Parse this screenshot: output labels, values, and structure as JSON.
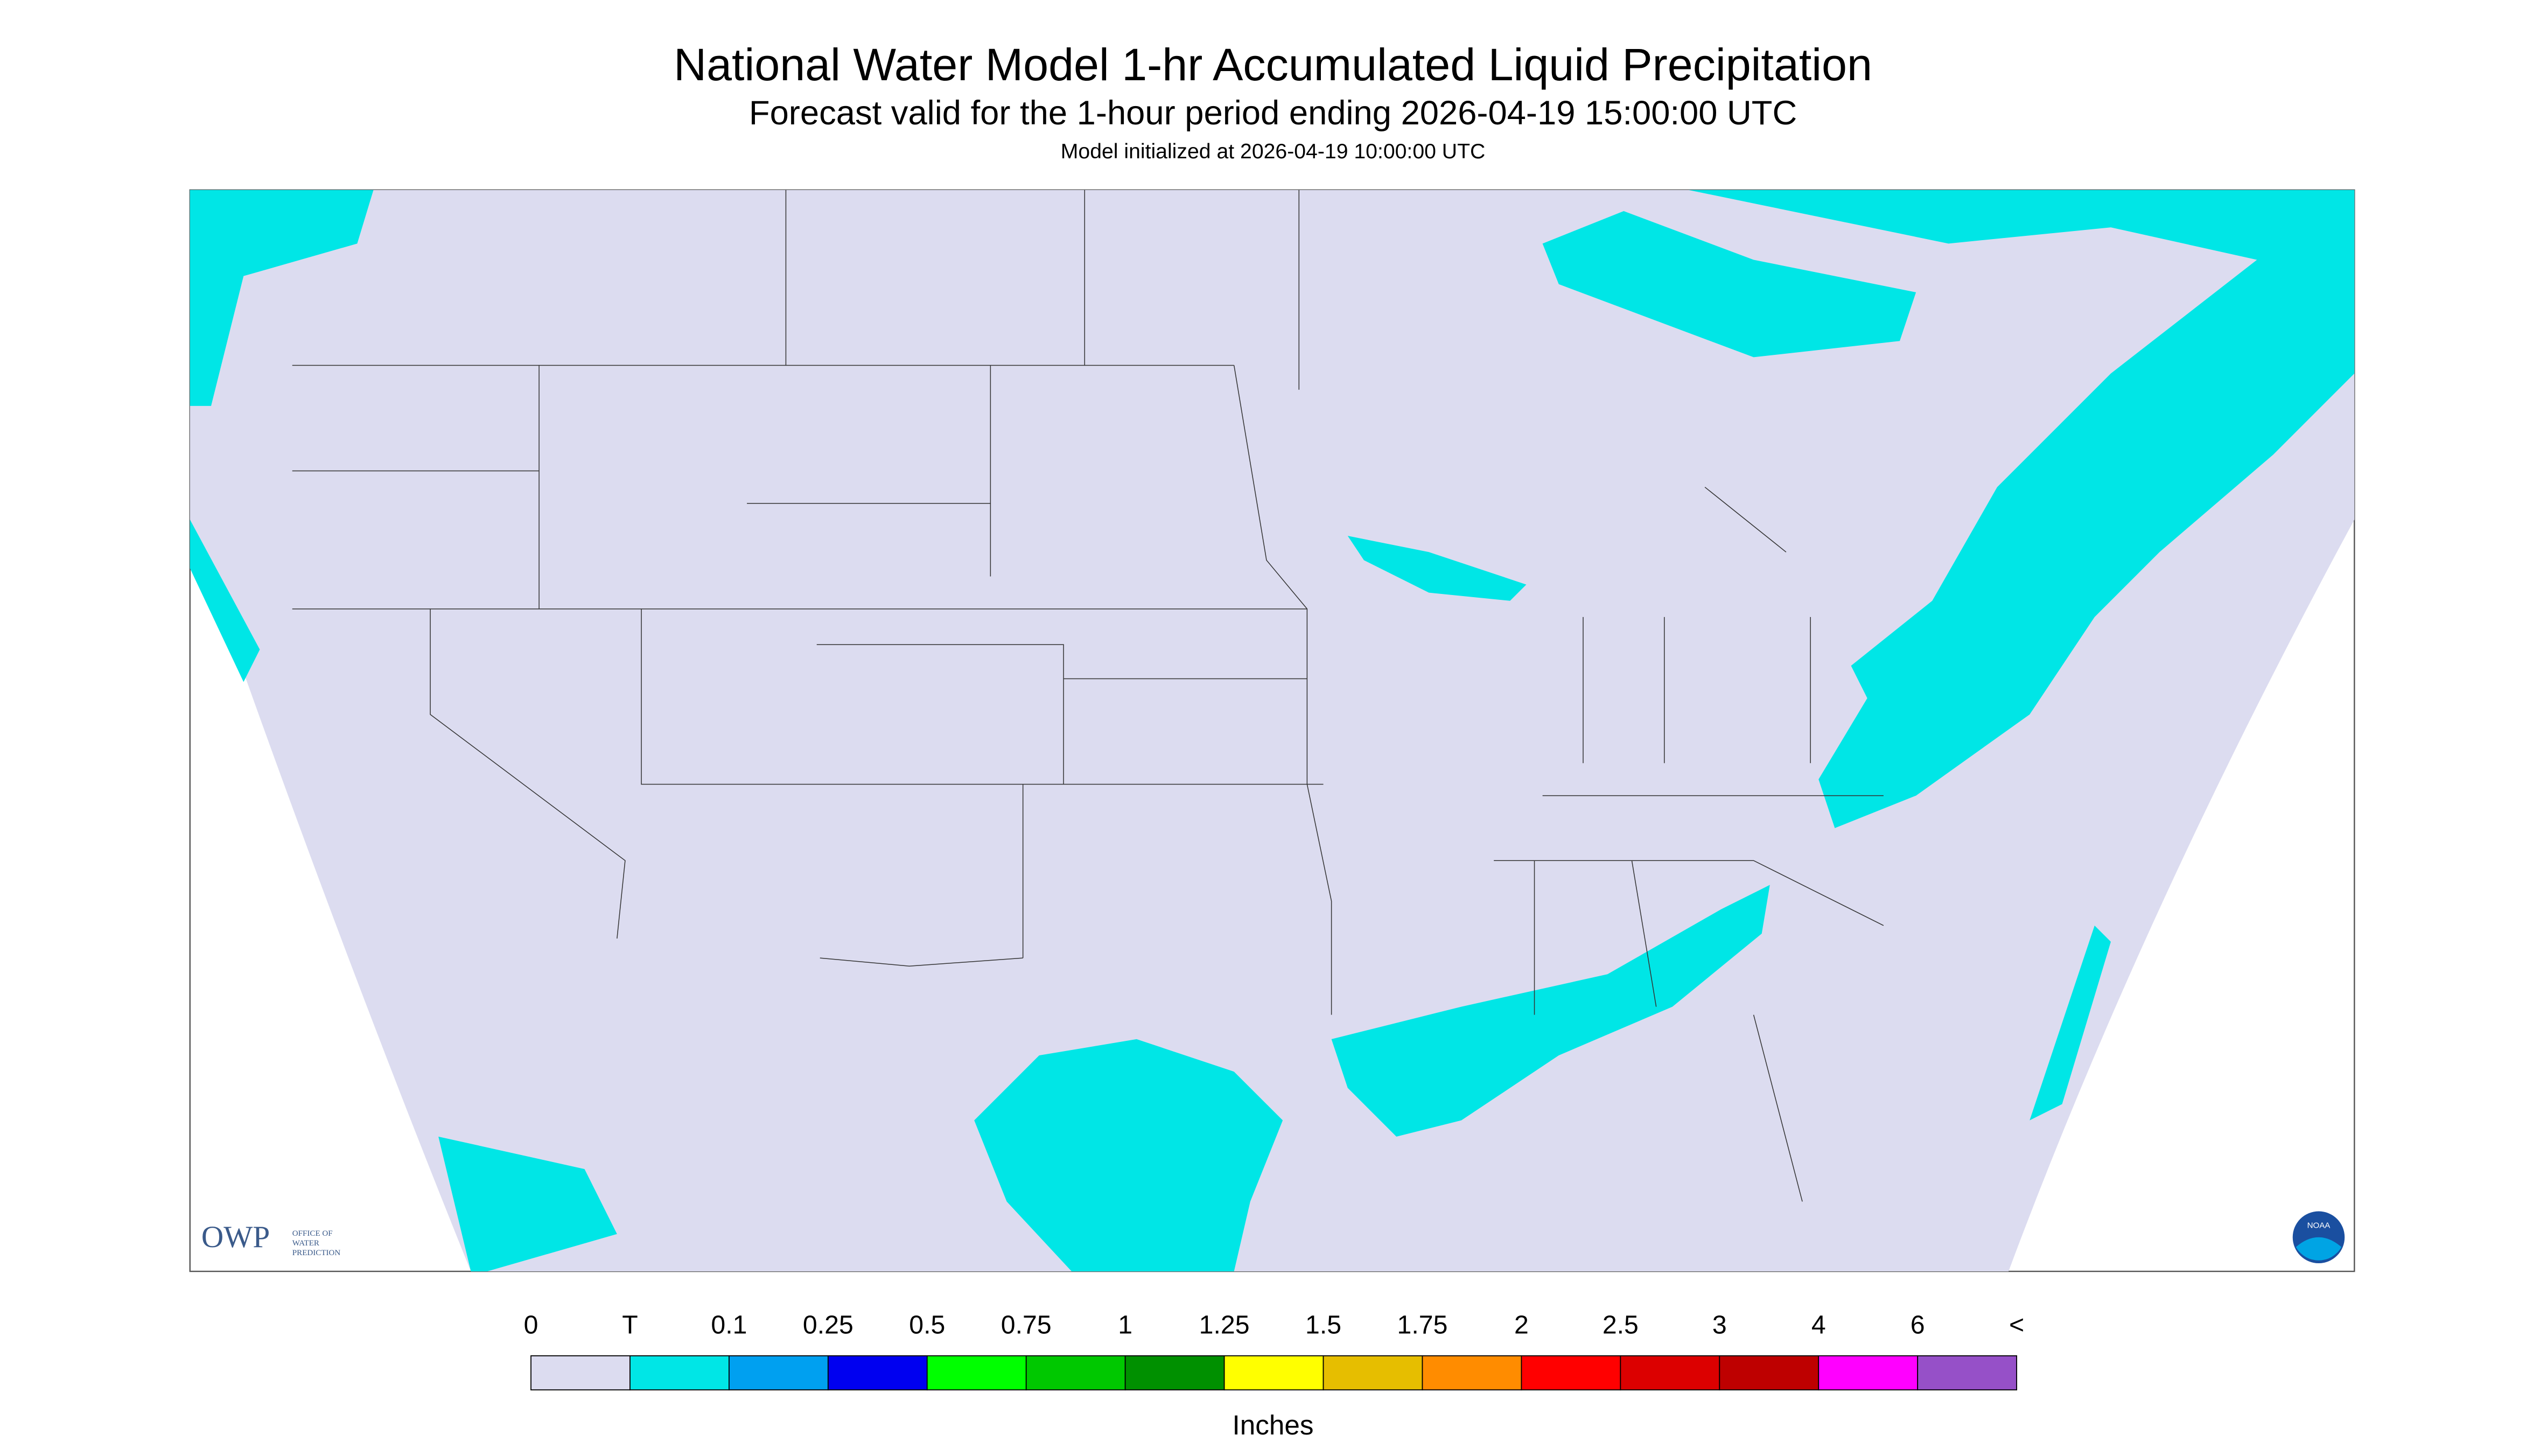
{
  "header": {
    "title": "National Water Model 1-hr Accumulated Liquid Precipitation",
    "subtitle": "Forecast valid for the 1-hour period ending 2026-04-19 15:00:00 UTC",
    "init": "Model initialized at 2026-04-19 10:00:00 UTC"
  },
  "map": {
    "owp": "OWP",
    "owp_full": [
      "OFFICE OF",
      "WATER",
      "PREDICTION"
    ],
    "noaa": "NOAA"
  },
  "legend": {
    "labels": [
      "0",
      "T",
      "0.1",
      "0.25",
      "0.5",
      "0.75",
      "1",
      "1.25",
      "1.5",
      "1.75",
      "2",
      "2.5",
      "3",
      "4",
      "6",
      "<"
    ],
    "colors": [
      "#dcdcf0",
      "#00e6e6",
      "#00a0f0",
      "#0000f0",
      "#00ff00",
      "#00c800",
      "#009000",
      "#ffff00",
      "#e6be00",
      "#ff8c00",
      "#ff0000",
      "#dc0000",
      "#be0000",
      "#ff00ff",
      "#9650c8"
    ],
    "unit": "Inches"
  }
}
